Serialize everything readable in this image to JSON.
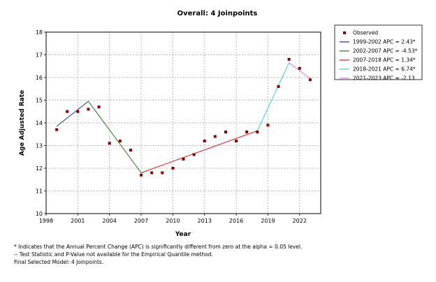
{
  "chart_data": {
    "type": "line",
    "title": "Overall: 4 Joinpoints",
    "xlabel": "Year",
    "ylabel": "Age Adjusted Rate",
    "xlim": [
      1998,
      2024
    ],
    "ylim": [
      10,
      18
    ],
    "xticks": [
      1998,
      2001,
      2004,
      2007,
      2010,
      2013,
      2016,
      2019,
      2022
    ],
    "yticks": [
      10,
      11,
      12,
      13,
      14,
      15,
      16,
      17,
      18
    ],
    "grid": true,
    "legend_position": "top-right",
    "observed": {
      "name": "Observed",
      "color": "#8b0000",
      "x": [
        1999,
        2000,
        2001,
        2002,
        2003,
        2004,
        2005,
        2006,
        2007,
        2008,
        2009,
        2010,
        2011,
        2012,
        2013,
        2014,
        2015,
        2016,
        2017,
        2018,
        2019,
        2020,
        2021,
        2022,
        2023
      ],
      "y": [
        13.7,
        14.5,
        14.5,
        14.6,
        14.7,
        13.1,
        13.2,
        12.8,
        11.7,
        11.8,
        11.8,
        12.0,
        12.4,
        12.6,
        13.2,
        13.4,
        13.6,
        13.2,
        13.6,
        13.6,
        13.9,
        15.6,
        16.8,
        16.4,
        15.9
      ]
    },
    "series": [
      {
        "name": "1999-2002 APC = 2.43*",
        "color": "#1f2f9a",
        "x": [
          1999,
          2002
        ],
        "y": [
          13.85,
          14.95
        ]
      },
      {
        "name": "2002-2007 APC = -4.53*",
        "color": "#1e7a1e",
        "x": [
          2002,
          2007
        ],
        "y": [
          14.95,
          11.8
        ]
      },
      {
        "name": "2007-2018 APC = 1.34*",
        "color": "#e02020",
        "x": [
          2007,
          2018
        ],
        "y": [
          11.8,
          13.65
        ]
      },
      {
        "name": "2018-2021 APC = 6.74*",
        "color": "#40d0d0",
        "x": [
          2018,
          2021
        ],
        "y": [
          13.65,
          16.65
        ]
      },
      {
        "name": "2021-2023 APC = -2.13",
        "color": "#e070e0",
        "x": [
          2021,
          2023
        ],
        "y": [
          16.65,
          15.95
        ]
      }
    ]
  },
  "footnotes": {
    "line1": "* Indicates that the Annual Percent Change (APC) is significantly different from zero at the alpha = 0.05 level.",
    "line2": "-- Test Statistic and P-Value not available for the Empirical Quantile method.",
    "line3": "Final Selected Model: 4 Joinpoints."
  }
}
